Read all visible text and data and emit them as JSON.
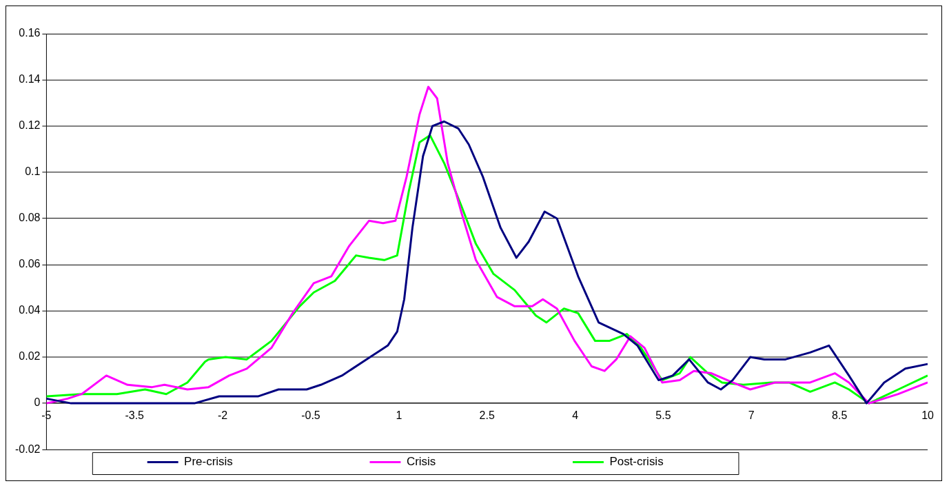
{
  "chart_data": {
    "type": "line",
    "xlim": [
      -5,
      10
    ],
    "xticks": [
      -5,
      -3.5,
      -2,
      -0.5,
      1,
      2.5,
      4,
      5.5,
      7,
      8.5,
      10
    ],
    "ylim": [
      -0.02,
      0.16
    ],
    "yticks": [
      -0.02,
      0,
      0.02,
      0.04,
      0.06,
      0.08,
      0.1,
      0.12,
      0.14,
      0.16
    ],
    "grid": "y",
    "legend": "bottom",
    "marker": "none",
    "line_style": "solid",
    "series": [
      {
        "name": "Pre-crisis",
        "color": "#000080",
        "x": [
          -5,
          -4.58,
          -2.48,
          -2.06,
          -1.4,
          -1.05,
          -0.57,
          -0.33,
          0.03,
          0.51,
          0.81,
          0.97,
          1.09,
          1.23,
          1.41,
          1.57,
          1.77,
          2.01,
          2.19,
          2.43,
          2.73,
          3,
          3.21,
          3.48,
          3.69,
          4.05,
          4.4,
          4.82,
          5.06,
          5.42,
          5.66,
          5.94,
          6.26,
          6.48,
          6.68,
          6.98,
          7.22,
          7.58,
          8,
          8.32,
          8.66,
          8.96,
          9.26,
          9.62,
          10
        ],
        "values": [
          0.002,
          0,
          0,
          0.003,
          0.003,
          0.006,
          0.006,
          0.008,
          0.012,
          0.02,
          0.025,
          0.031,
          0.045,
          0.076,
          0.107,
          0.12,
          0.122,
          0.119,
          0.112,
          0.098,
          0.076,
          0.063,
          0.07,
          0.083,
          0.08,
          0.055,
          0.035,
          0.03,
          0.025,
          0.01,
          0.012,
          0.019,
          0.009,
          0.006,
          0.01,
          0.02,
          0.019,
          0.019,
          0.022,
          0.025,
          0.012,
          0,
          0.009,
          0.015,
          0.017
        ]
      },
      {
        "name": "Crisis",
        "color": "#ff00ff",
        "x": [
          -5,
          -4.64,
          -4.4,
          -3.98,
          -3.62,
          -3.2,
          -2.99,
          -2.6,
          -2.24,
          -1.89,
          -1.59,
          -1.17,
          -0.81,
          -0.45,
          -0.15,
          0.15,
          0.49,
          0.73,
          0.94,
          1.13,
          1.35,
          1.5,
          1.65,
          1.83,
          2.07,
          2.31,
          2.67,
          2.97,
          3.27,
          3.45,
          3.69,
          3.99,
          4.28,
          4.5,
          4.7,
          4.94,
          5.18,
          5.48,
          5.78,
          6.02,
          6.32,
          6.68,
          6.98,
          7.4,
          8,
          8.42,
          8.66,
          9,
          9.5,
          10
        ],
        "values": [
          0,
          0.002,
          0.004,
          0.012,
          0.008,
          0.007,
          0.008,
          0.006,
          0.007,
          0.012,
          0.015,
          0.024,
          0.039,
          0.052,
          0.055,
          0.068,
          0.079,
          0.078,
          0.079,
          0.098,
          0.125,
          0.137,
          0.132,
          0.104,
          0.082,
          0.062,
          0.046,
          0.042,
          0.042,
          0.045,
          0.041,
          0.027,
          0.016,
          0.014,
          0.019,
          0.029,
          0.024,
          0.009,
          0.01,
          0.014,
          0.013,
          0.009,
          0.006,
          0.009,
          0.009,
          0.013,
          0.009,
          0,
          0.004,
          0.009
        ]
      },
      {
        "name": "Post-crisis",
        "color": "#00ff00",
        "x": [
          -5,
          -4.4,
          -3.8,
          -3.32,
          -2.96,
          -2.6,
          -2.3,
          -2.24,
          -1.95,
          -1.59,
          -1.17,
          -0.69,
          -0.45,
          -0.09,
          0.27,
          0.49,
          0.75,
          0.97,
          1.17,
          1.35,
          1.53,
          1.77,
          2.07,
          2.31,
          2.61,
          2.97,
          3.33,
          3.51,
          3.81,
          4.05,
          4.34,
          4.58,
          4.88,
          5.12,
          5.48,
          5.78,
          5.96,
          6.26,
          6.5,
          6.86,
          7.34,
          7.64,
          8,
          8.42,
          8.66,
          9,
          9.5,
          10
        ],
        "values": [
          0.003,
          0.004,
          0.004,
          0.006,
          0.004,
          0.009,
          0.018,
          0.019,
          0.02,
          0.019,
          0.027,
          0.042,
          0.048,
          0.053,
          0.064,
          0.063,
          0.062,
          0.064,
          0.092,
          0.113,
          0.116,
          0.104,
          0.085,
          0.069,
          0.056,
          0.049,
          0.038,
          0.035,
          0.041,
          0.039,
          0.027,
          0.027,
          0.03,
          0.024,
          0.01,
          0.013,
          0.02,
          0.013,
          0.009,
          0.008,
          0.009,
          0.009,
          0.005,
          0.009,
          0.006,
          0,
          0.006,
          0.012
        ]
      }
    ]
  }
}
